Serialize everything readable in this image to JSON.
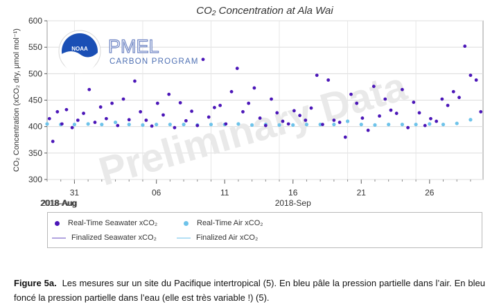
{
  "chart_data": {
    "type": "scatter",
    "title": "CO₂ Concentration at Ala Wai",
    "ylabel": "CO₂ Concentration (xCO₂ dry, μmol mol⁻¹)",
    "xlabel": "",
    "ylim": [
      300,
      600
    ],
    "yticks": [
      300,
      350,
      400,
      450,
      500,
      550,
      600
    ],
    "xlim": [
      "2018-07-29",
      "2018-08-29T22:00"
    ],
    "xticks": [
      {
        "date": "2018-07-31",
        "label": "31"
      },
      {
        "date": "2018-08-06",
        "label": "06"
      },
      {
        "date": "2018-08-11",
        "label": "11"
      },
      {
        "date": "2018-08-16",
        "label": "16"
      },
      {
        "date": "2018-08-21",
        "label": "21"
      },
      {
        "date": "2018-08-26",
        "label": "26"
      }
    ],
    "xsublabels": [
      {
        "date": "2018-07-29",
        "label": "2018-Aug"
      },
      {
        "date": "2018-07-31",
        "label": "2018-Aug"
      },
      {
        "date": "2018-08-16",
        "label": "2018-Sep"
      }
    ],
    "watermark": "Preliminary Data",
    "logo": {
      "name": "NOAA",
      "line1": "PMEL",
      "line2": "CARBON PROGRAM"
    },
    "grid": true,
    "colors": {
      "seawater": "#4b16b8",
      "air": "#6ec3ea"
    },
    "series": [
      {
        "name": "Real-Time Seawater xCO₂",
        "marker": "dot",
        "x": [
          "2018-07-29T04:00",
          "2018-07-29T10:00",
          "2018-07-29T18:00",
          "2018-07-30T02:00",
          "2018-07-30T10:00",
          "2018-07-30T20:00",
          "2018-07-31T06:00",
          "2018-07-31T16:00",
          "2018-08-01T02:00",
          "2018-08-01T12:00",
          "2018-08-01T22:00",
          "2018-08-02T08:00",
          "2018-08-02T18:00",
          "2018-08-03T04:00",
          "2018-08-03T14:00",
          "2018-08-04T00:00",
          "2018-08-04T10:00",
          "2018-08-04T20:00",
          "2018-08-05T06:00",
          "2018-08-05T16:00",
          "2018-08-06T02:00",
          "2018-08-06T12:00",
          "2018-08-06T22:00",
          "2018-08-07T08:00",
          "2018-08-07T18:00",
          "2018-08-08T04:00",
          "2018-08-08T14:00",
          "2018-08-09T00:00",
          "2018-08-09T10:00",
          "2018-08-09T20:00",
          "2018-08-10T06:00",
          "2018-08-10T16:00",
          "2018-08-11T02:00",
          "2018-08-11T12:00",
          "2018-08-11T22:00",
          "2018-08-12T08:00",
          "2018-08-12T18:00",
          "2018-08-13T04:00",
          "2018-08-13T14:00",
          "2018-08-14T00:00",
          "2018-08-14T10:00",
          "2018-08-14T20:00",
          "2018-08-15T06:00",
          "2018-08-15T16:00",
          "2018-08-16T02:00",
          "2018-08-16T12:00",
          "2018-08-16T22:00",
          "2018-08-17T08:00",
          "2018-08-17T18:00",
          "2018-08-18T04:00",
          "2018-08-18T14:00",
          "2018-08-19T00:00",
          "2018-08-19T10:00",
          "2018-08-19T20:00",
          "2018-08-20T06:00",
          "2018-08-20T16:00",
          "2018-08-21T02:00",
          "2018-08-21T12:00",
          "2018-08-21T22:00",
          "2018-08-22T08:00",
          "2018-08-22T18:00",
          "2018-08-23T04:00",
          "2018-08-23T14:00",
          "2018-08-24T00:00",
          "2018-08-24T10:00",
          "2018-08-24T20:00",
          "2018-08-25T06:00",
          "2018-08-25T16:00",
          "2018-08-26T02:00",
          "2018-08-26T12:00",
          "2018-08-26T22:00",
          "2018-08-27T08:00",
          "2018-08-27T18:00",
          "2018-08-28T04:00",
          "2018-08-28T14:00",
          "2018-08-29T00:00",
          "2018-08-29T10:00",
          "2018-08-29T18:00"
        ],
        "y": [
          415,
          372,
          428,
          405,
          432,
          398,
          412,
          425,
          470,
          408,
          437,
          415,
          444,
          402,
          452,
          413,
          486,
          428,
          412,
          401,
          444,
          422,
          461,
          398,
          445,
          411,
          429,
          402,
          527,
          418,
          436,
          440,
          405,
          466,
          510,
          428,
          444,
          473,
          416,
          402,
          452,
          426,
          410,
          405,
          430,
          421,
          412,
          435,
          497,
          404,
          488,
          412,
          408,
          380,
          461,
          444,
          416,
          393,
          476,
          420,
          452,
          431,
          425,
          470,
          398,
          446,
          426,
          402,
          415,
          410,
          452,
          440,
          466,
          455,
          552,
          497,
          488,
          428
        ]
      },
      {
        "name": "Real-Time Air xCO₂",
        "marker": "dot",
        "x": [
          "2018-07-29",
          "2018-07-30",
          "2018-07-31",
          "2018-08-01",
          "2018-08-02",
          "2018-08-03",
          "2018-08-04",
          "2018-08-05",
          "2018-08-06",
          "2018-08-07",
          "2018-08-08",
          "2018-08-09",
          "2018-08-10",
          "2018-08-11",
          "2018-08-12",
          "2018-08-13",
          "2018-08-14",
          "2018-08-15",
          "2018-08-16",
          "2018-08-17",
          "2018-08-18",
          "2018-08-19",
          "2018-08-20",
          "2018-08-21",
          "2018-08-22",
          "2018-08-23",
          "2018-08-24",
          "2018-08-25",
          "2018-08-26",
          "2018-08-27",
          "2018-08-28",
          "2018-08-29"
        ],
        "y": [
          405,
          404,
          404,
          405,
          404,
          408,
          404,
          403,
          404,
          404,
          404,
          403,
          404,
          404,
          405,
          403,
          404,
          403,
          403,
          404,
          404,
          404,
          410,
          404,
          403,
          404,
          404,
          404,
          405,
          404,
          406,
          413
        ]
      },
      {
        "name": "Finalized Seawater xCO₂",
        "marker": "line",
        "x": [],
        "y": []
      },
      {
        "name": "Finalized Air xCO₂",
        "marker": "line",
        "x": [],
        "y": []
      }
    ]
  },
  "caption": {
    "label": "Figure 5a.",
    "text": "Les mesures sur un site du Pacifique intertropical (5). En bleu pâle la pression partielle dans l’air. En bleu foncé la pression partielle dans l’eau (elle est très variable !) (5)."
  }
}
